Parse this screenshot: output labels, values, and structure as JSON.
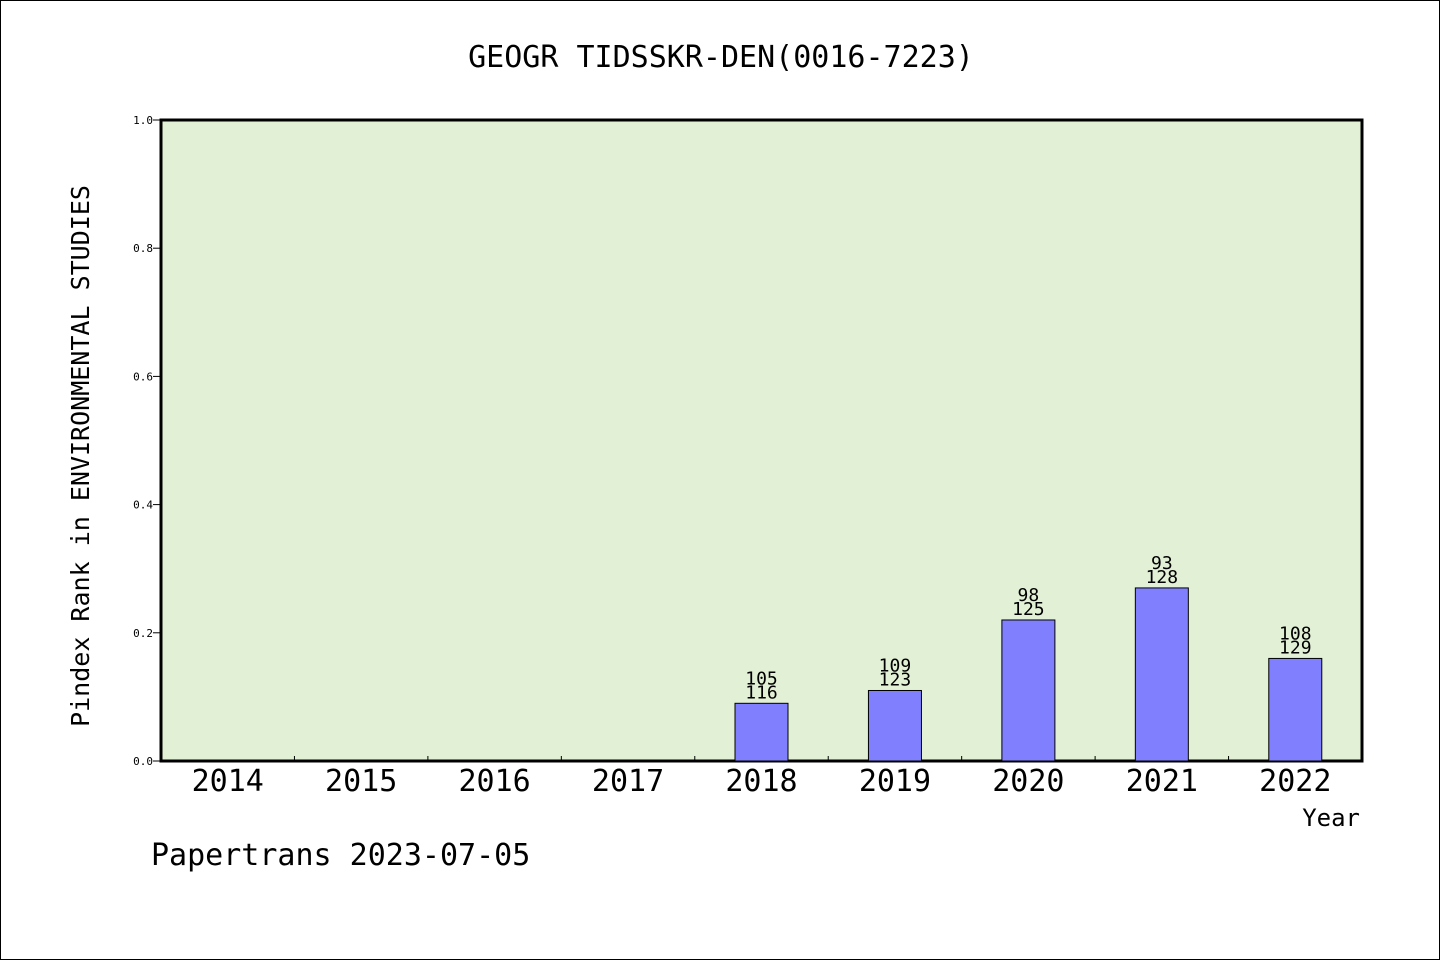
{
  "chart_data": {
    "type": "bar",
    "title": "GEOGR TIDSSKR-DEN(0016-7223)",
    "xlabel": "Year",
    "ylabel": "Pindex Rank in ENVIRONMENTAL STUDIES",
    "ylim": [
      0,
      1.0
    ],
    "yticks": [
      "0.0",
      "0.2",
      "0.4",
      "0.6",
      "0.8",
      "1.0"
    ],
    "categories": [
      "2014",
      "2015",
      "2016",
      "2017",
      "2018",
      "2019",
      "2020",
      "2021",
      "2022"
    ],
    "values": [
      null,
      null,
      null,
      null,
      0.09,
      0.11,
      0.22,
      0.27,
      0.16
    ],
    "labels_top": [
      "",
      "",
      "",
      "",
      "105",
      "109",
      "98",
      "93",
      "108"
    ],
    "labels_bottom": [
      "",
      "",
      "",
      "",
      "116",
      "123",
      "125",
      "128",
      "129"
    ],
    "grid": false,
    "colors": {
      "plot_background": "#e2f0d5",
      "bar_fill": "#8080ff",
      "bar_stroke": "#000000"
    }
  },
  "footer": {
    "text": "Papertrans 2023-07-05"
  }
}
